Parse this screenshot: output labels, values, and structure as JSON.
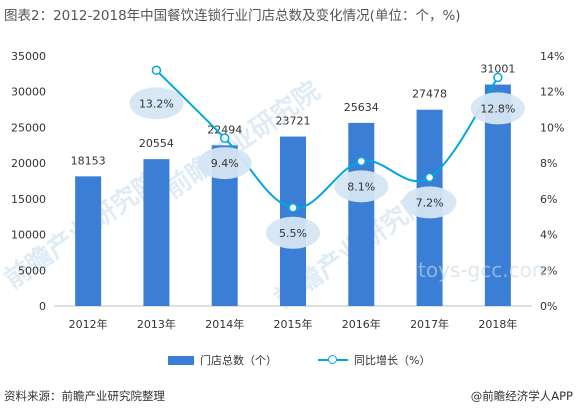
{
  "title": "图表2：2012-2018年中国餐饮连锁行业门店总数及变化情况(单位：个，%)",
  "footer": {
    "source": "资料来源：前瞻产业研究院整理",
    "brand": "@前瞻经济学人APP"
  },
  "watermarks": {
    "w1": "前瞻产业研究院",
    "w2": "前瞻产业研究院",
    "w3": "前瞻产业研究院",
    "site": "toys-gcc.com"
  },
  "colors": {
    "bar": "#3A7FD5",
    "line": "#00A7E1",
    "label_bubble": "#D5E6F3"
  },
  "chart_data": {
    "type": "bar",
    "categories": [
      "2012年",
      "2013年",
      "2014年",
      "2015年",
      "2016年",
      "2017年",
      "2018年"
    ],
    "series": [
      {
        "name": "门店总数（个）",
        "type": "bar",
        "axis": "left",
        "values": [
          18153,
          20554,
          22494,
          23721,
          25634,
          27478,
          31001
        ]
      },
      {
        "name": "同比增长（%）",
        "type": "line",
        "axis": "right",
        "values": [
          null,
          13.2,
          9.4,
          5.5,
          8.1,
          7.2,
          12.8
        ]
      }
    ],
    "y_left": {
      "min": 0,
      "max": 35000,
      "ticks": [
        "0",
        "5000",
        "10000",
        "15000",
        "20000",
        "25000",
        "30000",
        "35000"
      ]
    },
    "y_right": {
      "min": 0,
      "max": 14,
      "ticks": [
        "0%",
        "2%",
        "4%",
        "6%",
        "8%",
        "10%",
        "12%",
        "14%"
      ]
    },
    "bar_labels": [
      "18153",
      "20554",
      "22494",
      "23721",
      "25634",
      "27478",
      "31001"
    ],
    "line_labels": [
      "",
      "13.2%",
      "9.4%",
      "5.5%",
      "8.1%",
      "7.2%",
      "12.8%"
    ],
    "grid": false,
    "legend": "bottom"
  }
}
